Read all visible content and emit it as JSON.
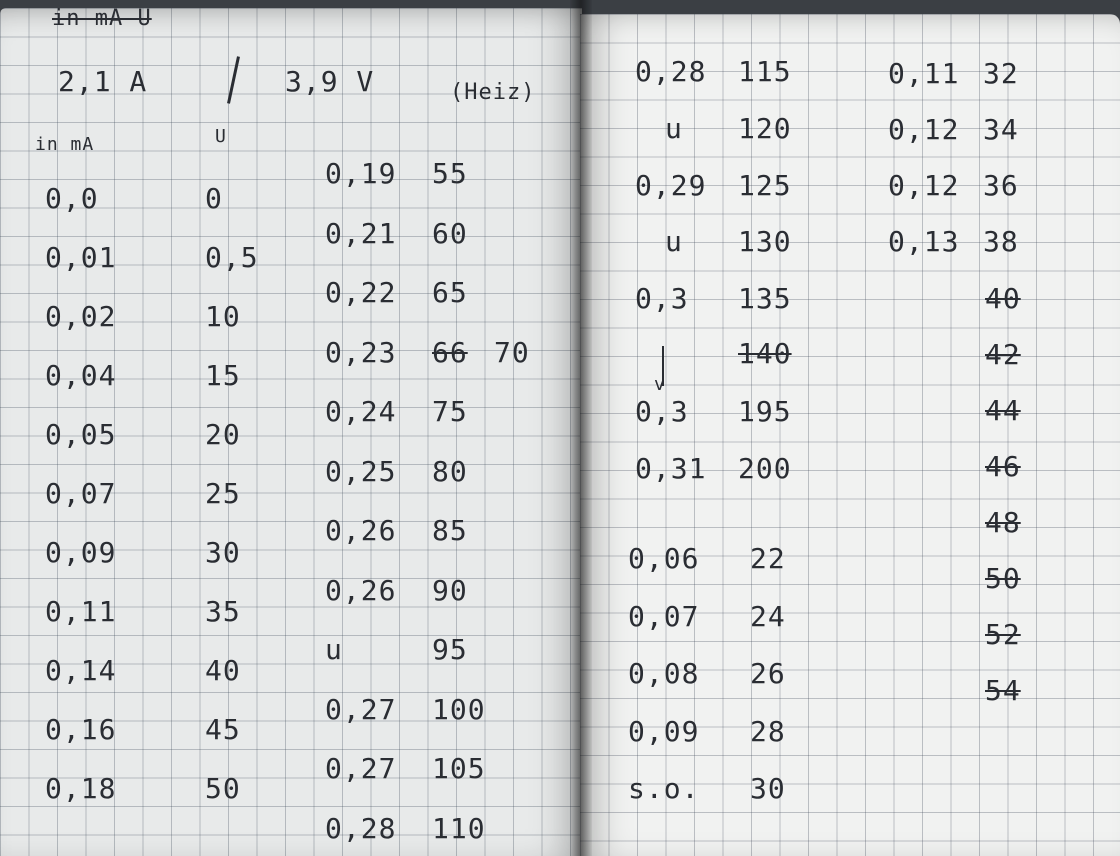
{
  "header": {
    "struck_label": "in mA   U",
    "current": "2,1 A",
    "voltage": "3,9 V",
    "note": "(Heiz)"
  },
  "left_column_headers": {
    "current": "in mA",
    "voltage": "U"
  },
  "left_column": [
    {
      "i": "0,0",
      "u": "0"
    },
    {
      "i": "0,01",
      "u": "0,5"
    },
    {
      "i": "0,02",
      "u": "10"
    },
    {
      "i": "0,04",
      "u": "15"
    },
    {
      "i": "0,05",
      "u": "20"
    },
    {
      "i": "0,07",
      "u": "25"
    },
    {
      "i": "0,09",
      "u": "30"
    },
    {
      "i": "0,11",
      "u": "35"
    },
    {
      "i": "0,14",
      "u": "40"
    },
    {
      "i": "0,16",
      "u": "45"
    },
    {
      "i": "0,18",
      "u": "50"
    }
  ],
  "middle_column": [
    {
      "i": "0,19",
      "u": "55"
    },
    {
      "i": "0,21",
      "u": "60"
    },
    {
      "i": "0,22",
      "u": "65"
    },
    {
      "i": "0,23",
      "u_struck": "66",
      "u": "70"
    },
    {
      "i": "0,24",
      "u": "75"
    },
    {
      "i": "0,25",
      "u": "80"
    },
    {
      "i": "0,26",
      "u": "85"
    },
    {
      "i": "0,26",
      "u": "90"
    },
    {
      "i": "u",
      "u": "95"
    },
    {
      "i": "0,27",
      "u": "100"
    },
    {
      "i": "0,27",
      "u": "105"
    },
    {
      "i": "0,28",
      "u": "110"
    }
  ],
  "right_column_a": [
    {
      "i": "0,28",
      "u": "115"
    },
    {
      "i": "u",
      "u": "120"
    },
    {
      "i": "0,29",
      "u": "125"
    },
    {
      "i": "u",
      "u": "130"
    },
    {
      "i": "0,3",
      "u": "135"
    },
    {
      "i": "",
      "u": "140",
      "struck": true
    },
    {
      "i": "0,3",
      "u": "195"
    },
    {
      "i": "0,31",
      "u": "200"
    }
  ],
  "right_column_b": [
    {
      "i": "0,06",
      "u": "22"
    },
    {
      "i": "0,07",
      "u": "24"
    },
    {
      "i": "0,08",
      "u": "26"
    },
    {
      "i": "0,09",
      "u": "28"
    },
    {
      "i": "s.o.",
      "u": "30"
    }
  ],
  "far_right_column": [
    {
      "i": "0,11",
      "u": "32"
    },
    {
      "i": "0,12",
      "u": "34"
    },
    {
      "i": "0,12",
      "u": "36"
    },
    {
      "i": "0,13",
      "u": "38"
    }
  ],
  "far_right_struck": [
    "40",
    "42",
    "44",
    "46",
    "48",
    "50",
    "52",
    "54"
  ]
}
